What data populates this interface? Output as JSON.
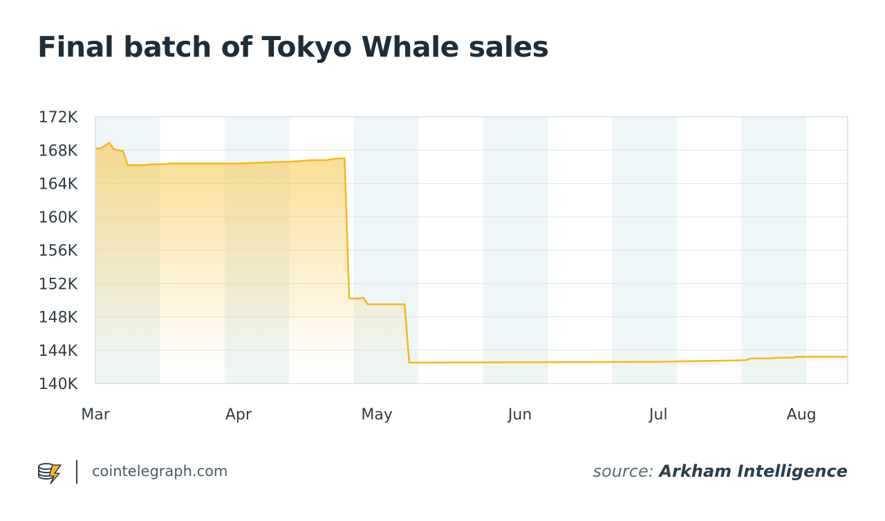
{
  "chart_data": {
    "type": "area",
    "title": "Final batch of Tokyo Whale sales",
    "xlabel": "",
    "ylabel": "",
    "x_ticks": [
      "Mar",
      "Apr",
      "May",
      "Jun",
      "Jul",
      "Aug"
    ],
    "y_ticks": [
      "140K",
      "144K",
      "148K",
      "152K",
      "156K",
      "160K",
      "164K",
      "168K",
      "172K"
    ],
    "xlim": [
      "Mar 1",
      "Aug 11"
    ],
    "ylim": [
      140000,
      172000
    ],
    "grid": true,
    "line_color": "#f4b81e",
    "fill_color": "#f6c544",
    "band_color": "#eef6f7",
    "series": [
      {
        "x": [
          "Mar 1",
          "Mar 2",
          "Mar 3",
          "Mar 4",
          "Mar 5",
          "Mar 6",
          "Mar 7",
          "Mar 8",
          "Mar 12",
          "Mar 13",
          "Mar 16",
          "Mar 17",
          "Mar 31",
          "Apr 1",
          "Apr 11",
          "Apr 12",
          "Apr 17",
          "Apr 18",
          "Apr 20",
          "Apr 21",
          "Apr 23",
          "Apr 24",
          "Apr 25",
          "Apr 26",
          "Apr 27",
          "Apr 28",
          "Apr 29",
          "Apr 30",
          "May 7",
          "May 8",
          "May 9",
          "Jun 30",
          "Jul 1",
          "Jul 10",
          "Jul 12",
          "Jul 20",
          "Jul 21",
          "Jul 22",
          "Jul 23",
          "Jul 25",
          "Jul 27",
          "Jul 30",
          "Jul 31",
          "Aug 1",
          "Aug 11"
        ],
        "y": [
          168200,
          168200,
          168500,
          168900,
          168100,
          168000,
          167900,
          166200,
          166200,
          166300,
          166300,
          166400,
          166400,
          166400,
          166600,
          166600,
          166800,
          166800,
          166800,
          166900,
          167000,
          167000,
          150200,
          150200,
          150200,
          150300,
          149500,
          149500,
          149500,
          142500,
          142500,
          142600,
          142600,
          142700,
          142700,
          142800,
          143000,
          143000,
          143000,
          143000,
          143100,
          143100,
          143200,
          143200,
          143200
        ]
      }
    ]
  },
  "footer": {
    "site": "cointelegraph.com",
    "source_prefix": "source:",
    "source_name": "Arkham Intelligence"
  }
}
